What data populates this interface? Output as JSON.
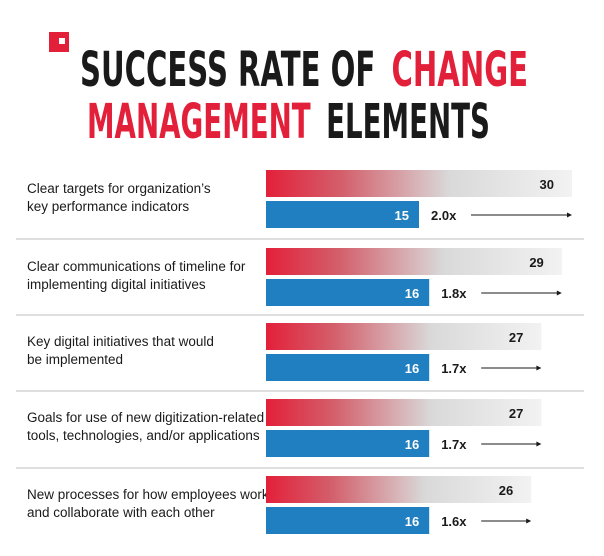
{
  "title": {
    "line1_dark": "SUCCESS RATE OF",
    "line1_red": "CHANGE",
    "line2_red": "MANAGEMENT",
    "line2_dark": "ELEMENTS"
  },
  "colors": {
    "red": "#e3203a",
    "blue": "#1f7fc0",
    "dark": "#1a1a1a",
    "divider": "#bfbfbf",
    "fade": "#f2f2f2"
  },
  "chart_data": {
    "type": "bar",
    "orientation": "horizontal",
    "categories": [
      [
        "Clear targets for organization’s",
        "key performance indicators"
      ],
      [
        "Clear communications of timeline for",
        "implementing digital initiatives"
      ],
      [
        "Key digital initiatives that would",
        "be implemented"
      ],
      [
        "Goals for use of new digitization-related",
        "tools, technologies, and/or applications"
      ],
      [
        "New processes for how employees work",
        "and collaborate with each other"
      ]
    ],
    "series": [
      {
        "color": "#e3203a",
        "values": [
          30,
          29,
          27,
          27,
          26
        ]
      },
      {
        "color": "#1f7fc0",
        "values": [
          15,
          16,
          16,
          16,
          16
        ]
      }
    ],
    "ratios": [
      "2.0x",
      "1.8x",
      "1.7x",
      "1.7x",
      "1.6x"
    ],
    "xlim": [
      0,
      30
    ],
    "grid": false,
    "legend": "none"
  }
}
